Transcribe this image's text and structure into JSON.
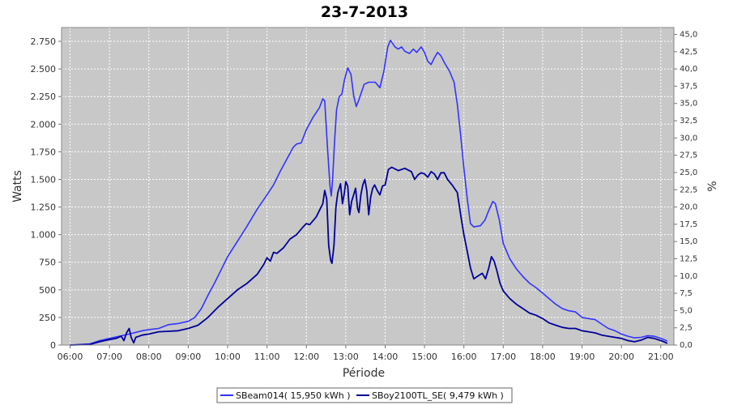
{
  "chart_data": {
    "type": "line",
    "title": "23-7-2013",
    "xlabel": "Période",
    "ylabel": "Watts",
    "y2label": "%",
    "ylim": [
      0,
      2875
    ],
    "y2lim": [
      0,
      46
    ],
    "xlim": [
      "05:47",
      "21:20"
    ],
    "grid": true,
    "legend_placement": "bottom-center",
    "x_ticks": [
      "06:00",
      "07:00",
      "08:00",
      "09:00",
      "10:00",
      "11:00",
      "12:00",
      "13:00",
      "14:00",
      "15:00",
      "16:00",
      "17:00",
      "18:00",
      "19:00",
      "20:00",
      "21:00"
    ],
    "y_ticks": [
      {
        "value": 0,
        "label": "0"
      },
      {
        "value": 250,
        "label": "250"
      },
      {
        "value": 500,
        "label": "500"
      },
      {
        "value": 750,
        "label": "750"
      },
      {
        "value": 1000,
        "label": "1.000"
      },
      {
        "value": 1250,
        "label": "1.250"
      },
      {
        "value": 1500,
        "label": "1.500"
      },
      {
        "value": 1750,
        "label": "1.750"
      },
      {
        "value": 2000,
        "label": "2.000"
      },
      {
        "value": 2250,
        "label": "2.250"
      },
      {
        "value": 2500,
        "label": "2.500"
      },
      {
        "value": 2750,
        "label": "2.750"
      }
    ],
    "y2_ticks": [
      {
        "value": 0,
        "label": "0,0"
      },
      {
        "value": 2.5,
        "label": "2,5"
      },
      {
        "value": 5,
        "label": "5,0"
      },
      {
        "value": 7.5,
        "label": "7,5"
      },
      {
        "value": 10,
        "label": "10,0"
      },
      {
        "value": 12.5,
        "label": "12,5"
      },
      {
        "value": 15,
        "label": "15,0"
      },
      {
        "value": 17.5,
        "label": "17,5"
      },
      {
        "value": 20,
        "label": "20,0"
      },
      {
        "value": 22.5,
        "label": "22,5"
      },
      {
        "value": 25,
        "label": "25,0"
      },
      {
        "value": 27.5,
        "label": "27,5"
      },
      {
        "value": 30,
        "label": "30,0"
      },
      {
        "value": 32.5,
        "label": "32,5"
      },
      {
        "value": 35,
        "label": "35,0"
      },
      {
        "value": 37.5,
        "label": "37,5"
      },
      {
        "value": 40,
        "label": "40,0"
      },
      {
        "value": 42.5,
        "label": "42,5"
      },
      {
        "value": 45,
        "label": "45,0"
      }
    ],
    "series": [
      {
        "name": "SBeam014( 15,950 kWh )",
        "color": "#3333ff",
        "points": [
          [
            "06:00",
            0
          ],
          [
            "06:30",
            10
          ],
          [
            "06:45",
            40
          ],
          [
            "07:00",
            60
          ],
          [
            "07:30",
            100
          ],
          [
            "07:50",
            130
          ],
          [
            "08:00",
            140
          ],
          [
            "08:15",
            150
          ],
          [
            "08:30",
            185
          ],
          [
            "08:45",
            195
          ],
          [
            "09:00",
            215
          ],
          [
            "09:10",
            250
          ],
          [
            "09:20",
            330
          ],
          [
            "09:30",
            450
          ],
          [
            "09:40",
            560
          ],
          [
            "09:50",
            680
          ],
          [
            "10:00",
            800
          ],
          [
            "10:15",
            940
          ],
          [
            "10:30",
            1080
          ],
          [
            "10:45",
            1230
          ],
          [
            "11:00",
            1360
          ],
          [
            "11:10",
            1450
          ],
          [
            "11:20",
            1570
          ],
          [
            "11:30",
            1680
          ],
          [
            "11:40",
            1790
          ],
          [
            "11:45",
            1820
          ],
          [
            "11:52",
            1830
          ],
          [
            "12:00",
            1950
          ],
          [
            "12:10",
            2060
          ],
          [
            "12:20",
            2150
          ],
          [
            "12:25",
            2230
          ],
          [
            "12:28",
            2210
          ],
          [
            "12:32",
            1800
          ],
          [
            "12:36",
            1440
          ],
          [
            "12:38",
            1350
          ],
          [
            "12:40",
            1500
          ],
          [
            "12:43",
            1850
          ],
          [
            "12:46",
            2130
          ],
          [
            "12:50",
            2250
          ],
          [
            "12:54",
            2270
          ],
          [
            "12:58",
            2400
          ],
          [
            "13:03",
            2510
          ],
          [
            "13:08",
            2450
          ],
          [
            "13:12",
            2260
          ],
          [
            "13:16",
            2160
          ],
          [
            "13:20",
            2220
          ],
          [
            "13:28",
            2360
          ],
          [
            "13:35",
            2380
          ],
          [
            "13:45",
            2380
          ],
          [
            "13:52",
            2330
          ],
          [
            "13:58",
            2480
          ],
          [
            "14:04",
            2700
          ],
          [
            "14:08",
            2760
          ],
          [
            "14:15",
            2700
          ],
          [
            "14:20",
            2680
          ],
          [
            "14:25",
            2700
          ],
          [
            "14:30",
            2660
          ],
          [
            "14:37",
            2640
          ],
          [
            "14:43",
            2680
          ],
          [
            "14:48",
            2650
          ],
          [
            "14:55",
            2700
          ],
          [
            "15:00",
            2650
          ],
          [
            "15:05",
            2570
          ],
          [
            "15:10",
            2540
          ],
          [
            "15:15",
            2600
          ],
          [
            "15:20",
            2650
          ],
          [
            "15:25",
            2620
          ],
          [
            "15:30",
            2560
          ],
          [
            "15:38",
            2480
          ],
          [
            "15:45",
            2380
          ],
          [
            "15:50",
            2180
          ],
          [
            "15:55",
            1900
          ],
          [
            "16:00",
            1600
          ],
          [
            "16:05",
            1330
          ],
          [
            "16:10",
            1100
          ],
          [
            "16:15",
            1070
          ],
          [
            "16:25",
            1080
          ],
          [
            "16:32",
            1130
          ],
          [
            "16:38",
            1220
          ],
          [
            "16:44",
            1300
          ],
          [
            "16:48",
            1280
          ],
          [
            "16:54",
            1130
          ],
          [
            "17:00",
            920
          ],
          [
            "17:10",
            780
          ],
          [
            "17:20",
            690
          ],
          [
            "17:30",
            620
          ],
          [
            "17:40",
            560
          ],
          [
            "17:50",
            520
          ],
          [
            "18:00",
            470
          ],
          [
            "18:10",
            420
          ],
          [
            "18:20",
            370
          ],
          [
            "18:30",
            330
          ],
          [
            "18:40",
            310
          ],
          [
            "18:50",
            300
          ],
          [
            "19:00",
            250
          ],
          [
            "19:10",
            240
          ],
          [
            "19:20",
            230
          ],
          [
            "19:30",
            190
          ],
          [
            "19:40",
            150
          ],
          [
            "19:50",
            130
          ],
          [
            "20:00",
            100
          ],
          [
            "20:10",
            80
          ],
          [
            "20:20",
            65
          ],
          [
            "20:30",
            70
          ],
          [
            "20:40",
            85
          ],
          [
            "20:50",
            80
          ],
          [
            "21:00",
            60
          ],
          [
            "21:05",
            50
          ],
          [
            "21:10",
            35
          ]
        ]
      },
      {
        "name": "SBoy2100TL_SE( 9,479 kWh )",
        "color": "#000099",
        "points": [
          [
            "06:00",
            0
          ],
          [
            "06:30",
            5
          ],
          [
            "06:45",
            30
          ],
          [
            "07:00",
            50
          ],
          [
            "07:10",
            60
          ],
          [
            "07:18",
            80
          ],
          [
            "07:22",
            40
          ],
          [
            "07:26",
            110
          ],
          [
            "07:30",
            150
          ],
          [
            "07:33",
            70
          ],
          [
            "07:37",
            20
          ],
          [
            "07:40",
            70
          ],
          [
            "07:50",
            90
          ],
          [
            "08:00",
            100
          ],
          [
            "08:15",
            120
          ],
          [
            "08:30",
            125
          ],
          [
            "08:45",
            130
          ],
          [
            "09:00",
            150
          ],
          [
            "09:15",
            180
          ],
          [
            "09:30",
            250
          ],
          [
            "09:45",
            340
          ],
          [
            "10:00",
            420
          ],
          [
            "10:15",
            500
          ],
          [
            "10:30",
            560
          ],
          [
            "10:45",
            640
          ],
          [
            "10:55",
            730
          ],
          [
            "11:00",
            790
          ],
          [
            "11:05",
            760
          ],
          [
            "11:10",
            840
          ],
          [
            "11:15",
            830
          ],
          [
            "11:25",
            880
          ],
          [
            "11:35",
            960
          ],
          [
            "11:45",
            1000
          ],
          [
            "11:55",
            1070
          ],
          [
            "12:00",
            1100
          ],
          [
            "12:05",
            1090
          ],
          [
            "12:15",
            1160
          ],
          [
            "12:20",
            1220
          ],
          [
            "12:25",
            1280
          ],
          [
            "12:28",
            1400
          ],
          [
            "12:31",
            1320
          ],
          [
            "12:34",
            900
          ],
          [
            "12:37",
            770
          ],
          [
            "12:39",
            740
          ],
          [
            "12:42",
            900
          ],
          [
            "12:45",
            1250
          ],
          [
            "12:48",
            1380
          ],
          [
            "12:52",
            1460
          ],
          [
            "12:55",
            1280
          ],
          [
            "12:58",
            1380
          ],
          [
            "13:00",
            1480
          ],
          [
            "13:03",
            1440
          ],
          [
            "13:06",
            1180
          ],
          [
            "13:09",
            1300
          ],
          [
            "13:12",
            1360
          ],
          [
            "13:15",
            1420
          ],
          [
            "13:18",
            1240
          ],
          [
            "13:20",
            1200
          ],
          [
            "13:23",
            1360
          ],
          [
            "13:26",
            1450
          ],
          [
            "13:29",
            1500
          ],
          [
            "13:32",
            1400
          ],
          [
            "13:35",
            1180
          ],
          [
            "13:38",
            1340
          ],
          [
            "13:41",
            1420
          ],
          [
            "13:44",
            1450
          ],
          [
            "13:48",
            1400
          ],
          [
            "13:52",
            1360
          ],
          [
            "13:56",
            1440
          ],
          [
            "14:00",
            1450
          ],
          [
            "14:05",
            1590
          ],
          [
            "14:10",
            1610
          ],
          [
            "14:20",
            1580
          ],
          [
            "14:30",
            1600
          ],
          [
            "14:40",
            1570
          ],
          [
            "14:45",
            1500
          ],
          [
            "14:50",
            1540
          ],
          [
            "14:55",
            1560
          ],
          [
            "15:00",
            1550
          ],
          [
            "15:05",
            1520
          ],
          [
            "15:10",
            1570
          ],
          [
            "15:15",
            1550
          ],
          [
            "15:20",
            1500
          ],
          [
            "15:25",
            1560
          ],
          [
            "15:30",
            1560
          ],
          [
            "15:35",
            1500
          ],
          [
            "15:42",
            1450
          ],
          [
            "15:50",
            1380
          ],
          [
            "15:55",
            1180
          ],
          [
            "16:00",
            1000
          ],
          [
            "16:05",
            850
          ],
          [
            "16:10",
            700
          ],
          [
            "16:15",
            600
          ],
          [
            "16:20",
            620
          ],
          [
            "16:28",
            650
          ],
          [
            "16:33",
            600
          ],
          [
            "16:38",
            700
          ],
          [
            "16:42",
            800
          ],
          [
            "16:46",
            760
          ],
          [
            "16:50",
            680
          ],
          [
            "16:55",
            560
          ],
          [
            "17:00",
            490
          ],
          [
            "17:10",
            420
          ],
          [
            "17:20",
            370
          ],
          [
            "17:30",
            330
          ],
          [
            "17:40",
            290
          ],
          [
            "17:50",
            270
          ],
          [
            "18:00",
            240
          ],
          [
            "18:10",
            200
          ],
          [
            "18:20",
            180
          ],
          [
            "18:30",
            160
          ],
          [
            "18:40",
            150
          ],
          [
            "18:50",
            150
          ],
          [
            "19:00",
            130
          ],
          [
            "19:10",
            120
          ],
          [
            "19:20",
            110
          ],
          [
            "19:30",
            90
          ],
          [
            "19:40",
            80
          ],
          [
            "19:50",
            70
          ],
          [
            "20:00",
            60
          ],
          [
            "20:10",
            40
          ],
          [
            "20:20",
            30
          ],
          [
            "20:30",
            45
          ],
          [
            "20:40",
            70
          ],
          [
            "20:50",
            60
          ],
          [
            "21:00",
            40
          ],
          [
            "21:05",
            30
          ],
          [
            "21:10",
            15
          ]
        ]
      }
    ]
  }
}
